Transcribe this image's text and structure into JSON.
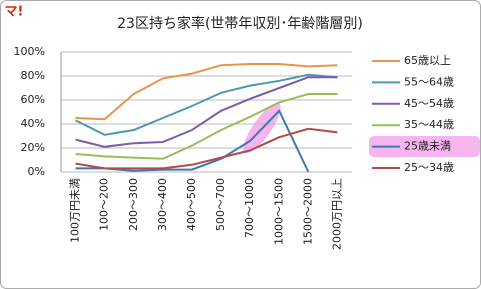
{
  "logo": "マ!",
  "chart_data": {
    "type": "line",
    "title": "23区持ち家率(世帯年収別･年齢階層別)",
    "categories": [
      "100万円未満",
      "100～200",
      "200～300",
      "300～400",
      "400～500",
      "500～700",
      "700～1000",
      "1000～1500",
      "1500～2000",
      "2000万円以上"
    ],
    "series": [
      {
        "name": "65歳以上",
        "color": "#e8944a",
        "values": [
          45,
          44,
          65,
          78,
          82,
          89,
          90,
          90,
          88,
          89
        ]
      },
      {
        "name": "55～64歳",
        "color": "#4a9ab0",
        "values": [
          43,
          31,
          35,
          45,
          55,
          66,
          72,
          76,
          81,
          79
        ]
      },
      {
        "name": "45～54歳",
        "color": "#7b5ea7",
        "values": [
          27,
          21,
          24,
          25,
          35,
          51,
          61,
          70,
          79,
          79
        ]
      },
      {
        "name": "35～44歳",
        "color": "#9bbb59",
        "values": [
          15,
          13,
          12,
          11,
          22,
          35,
          46,
          58,
          65,
          65
        ]
      },
      {
        "name": "25歳未満",
        "color": "#3f77b0",
        "values": [
          3,
          3,
          1,
          2,
          2,
          11,
          26,
          51,
          0,
          null
        ]
      },
      {
        "name": "25～34歳",
        "color": "#b24a47",
        "values": [
          7,
          3,
          3,
          3,
          6,
          12,
          18,
          29,
          36,
          33
        ]
      }
    ],
    "ylim": [
      0,
      100
    ],
    "yticks": [
      {
        "value": 0,
        "label": "0%"
      },
      {
        "value": 20,
        "label": "20%"
      },
      {
        "value": 40,
        "label": "40%"
      },
      {
        "value": 60,
        "label": "60%"
      },
      {
        "value": 80,
        "label": "80%"
      },
      {
        "value": 100,
        "label": "100%"
      }
    ],
    "grid": true,
    "legend": "right"
  }
}
